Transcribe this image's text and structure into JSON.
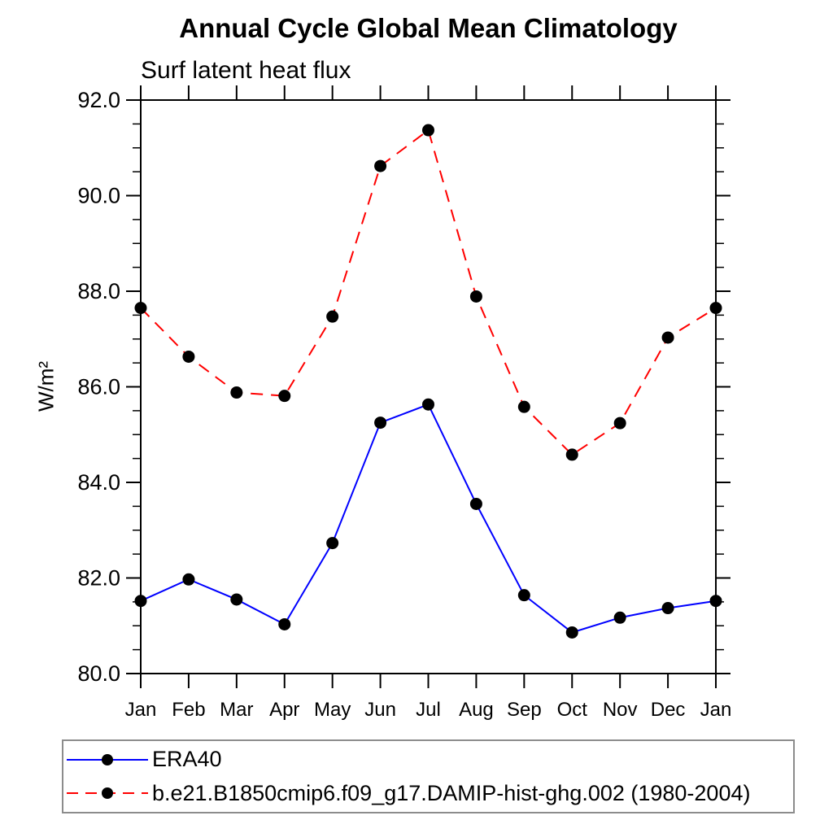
{
  "chart_data": {
    "type": "line",
    "title": "Annual Cycle Global Mean Climatology",
    "subtitle": "Surf latent heat flux",
    "ylabel": "W/m²",
    "xlabel": "",
    "categories": [
      "Jan",
      "Feb",
      "Mar",
      "Apr",
      "May",
      "Jun",
      "Jul",
      "Aug",
      "Sep",
      "Oct",
      "Nov",
      "Dec",
      "Jan"
    ],
    "ylim": [
      80.0,
      92.0
    ],
    "ytick_major_values": [
      80.0,
      82.0,
      84.0,
      86.0,
      88.0,
      90.0,
      92.0
    ],
    "ytick_major_labels": [
      "80.0",
      "82.0",
      "84.0",
      "86.0",
      "88.0",
      "90.0",
      "92.0"
    ],
    "ytick_minor_step": 0.5,
    "grid": false,
    "legend_position": "bottom-left-box",
    "axis_color": "#000000",
    "marker_color": "#000000",
    "series": [
      {
        "name": "ERA40",
        "color": "#0000ff",
        "style": "solid",
        "marker": "filled-circle",
        "values": [
          81.52,
          81.97,
          81.55,
          81.03,
          82.73,
          85.25,
          85.63,
          83.55,
          81.64,
          80.86,
          81.17,
          81.37,
          81.52
        ]
      },
      {
        "name": "b.e21.B1850cmip6.f09_g17.DAMIP-hist-ghg.002 (1980-2004)",
        "color": "#ff0000",
        "style": "dashed",
        "marker": "filled-circle",
        "values": [
          87.65,
          86.63,
          85.88,
          85.81,
          87.47,
          90.62,
          91.37,
          87.89,
          85.58,
          84.58,
          85.24,
          87.03,
          87.65
        ]
      }
    ]
  }
}
